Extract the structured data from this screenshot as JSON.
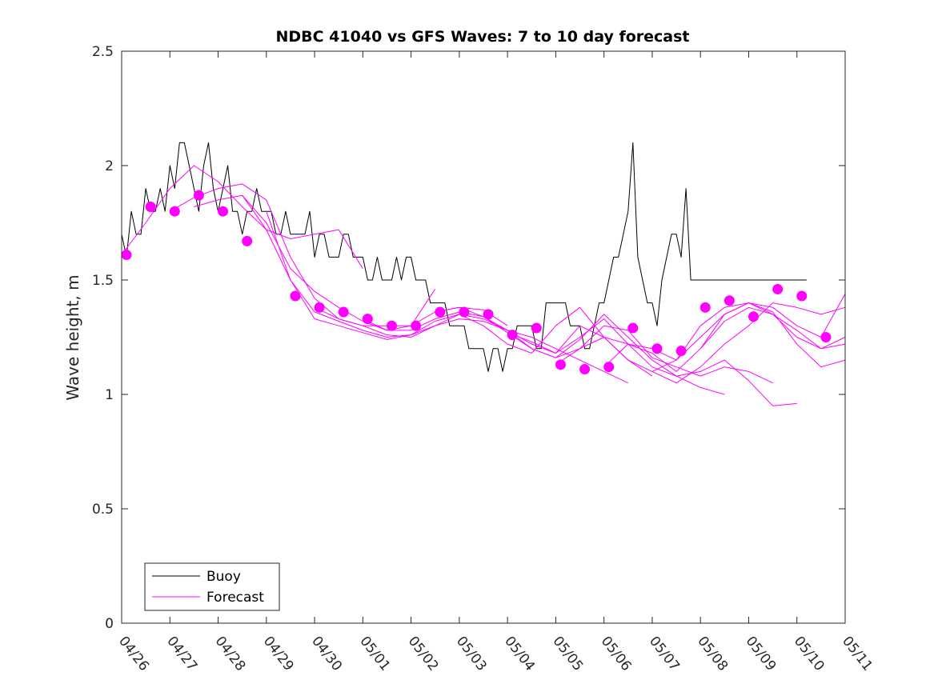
{
  "chart_data": {
    "type": "line",
    "title": "NDBC 41040 vs GFS Waves: 7 to 10 day forecast",
    "xlabel": "",
    "ylabel": "Wave height, m",
    "xlim": [
      0,
      15
    ],
    "ylim": [
      0,
      2.5
    ],
    "x_tick_labels": [
      "04/26",
      "04/27",
      "04/28",
      "04/29",
      "04/30",
      "05/01",
      "05/02",
      "05/03",
      "05/04",
      "05/05",
      "05/06",
      "05/07",
      "05/08",
      "05/09",
      "05/10",
      "05/11"
    ],
    "y_ticks": [
      0,
      0.5,
      1,
      1.5,
      2,
      2.5
    ],
    "y_tick_labels": [
      "0",
      "0.5",
      "1",
      "1.5",
      "2",
      "2.5"
    ],
    "grid": false,
    "legend": {
      "placement": "bottom-left",
      "entries": [
        {
          "label": "Buoy",
          "color": "#000000"
        },
        {
          "label": "Forecast",
          "color": "#ff00ff"
        }
      ]
    },
    "colors": {
      "buoy": "#000000",
      "forecast": "#ff00ff"
    },
    "series": [
      {
        "name": "Buoy",
        "role": "buoy",
        "x": [
          0,
          0.1,
          0.2,
          0.3,
          0.4,
          0.5,
          0.6,
          0.7,
          0.8,
          0.9,
          1.0,
          1.1,
          1.2,
          1.3,
          1.4,
          1.5,
          1.6,
          1.7,
          1.8,
          1.9,
          2.0,
          2.1,
          2.2,
          2.3,
          2.4,
          2.5,
          2.6,
          2.7,
          2.8,
          2.9,
          3.0,
          3.1,
          3.2,
          3.3,
          3.4,
          3.5,
          3.6,
          3.7,
          3.8,
          3.9,
          4.0,
          4.1,
          4.2,
          4.3,
          4.4,
          4.5,
          4.6,
          4.7,
          4.8,
          4.9,
          5.0,
          5.1,
          5.2,
          5.3,
          5.4,
          5.5,
          5.6,
          5.7,
          5.8,
          5.9,
          6.0,
          6.1,
          6.2,
          6.3,
          6.4,
          6.5,
          6.6,
          6.7,
          6.8,
          6.9,
          7.0,
          7.1,
          7.2,
          7.3,
          7.4,
          7.5,
          7.6,
          7.7,
          7.8,
          7.9,
          8.0,
          8.1,
          8.2,
          8.3,
          8.4,
          8.5,
          8.6,
          8.7,
          8.8,
          8.9,
          9.0,
          9.1,
          9.2,
          9.3,
          9.4,
          9.5,
          9.6,
          9.7,
          9.8,
          9.9,
          10.0,
          10.1,
          10.2,
          10.3,
          10.4,
          10.5,
          10.6,
          10.7,
          10.8,
          10.9,
          11.0,
          11.1,
          11.2,
          11.3,
          11.4,
          11.5,
          11.6,
          11.7,
          11.8,
          11.9,
          12.0,
          12.1,
          12.2,
          12.3,
          12.4,
          12.5,
          12.6,
          12.7,
          12.8,
          12.9,
          13.0,
          13.1,
          13.2,
          13.3,
          13.4,
          13.5,
          13.6,
          13.7,
          13.8,
          13.9,
          14.0,
          14.1,
          14.2
        ],
        "values": [
          1.7,
          1.6,
          1.8,
          1.7,
          1.7,
          1.9,
          1.8,
          1.8,
          1.9,
          1.8,
          2.0,
          1.9,
          2.1,
          2.1,
          2.0,
          1.9,
          1.8,
          2.0,
          2.1,
          1.9,
          1.8,
          1.9,
          2.0,
          1.8,
          1.8,
          1.7,
          1.8,
          1.8,
          1.9,
          1.8,
          1.8,
          1.8,
          1.7,
          1.7,
          1.8,
          1.7,
          1.7,
          1.7,
          1.7,
          1.8,
          1.6,
          1.7,
          1.7,
          1.6,
          1.6,
          1.6,
          1.7,
          1.7,
          1.6,
          1.6,
          1.6,
          1.5,
          1.5,
          1.6,
          1.5,
          1.5,
          1.5,
          1.6,
          1.5,
          1.6,
          1.6,
          1.5,
          1.5,
          1.5,
          1.4,
          1.4,
          1.4,
          1.4,
          1.3,
          1.3,
          1.3,
          1.3,
          1.2,
          1.2,
          1.2,
          1.2,
          1.1,
          1.2,
          1.2,
          1.1,
          1.2,
          1.2,
          1.3,
          1.3,
          1.3,
          1.3,
          1.2,
          1.2,
          1.4,
          1.4,
          1.4,
          1.4,
          1.4,
          1.3,
          1.3,
          1.3,
          1.2,
          1.2,
          1.3,
          1.4,
          1.4,
          1.5,
          1.6,
          1.6,
          1.7,
          1.8,
          2.1,
          1.6,
          1.5,
          1.4,
          1.4,
          1.3,
          1.5,
          1.6,
          1.7,
          1.7,
          1.6,
          1.9,
          1.5,
          1.5,
          1.5,
          1.5,
          1.5,
          1.5,
          1.5,
          1.5,
          1.5,
          1.5,
          1.5,
          1.5,
          1.5,
          1.5,
          1.5,
          1.5,
          1.5,
          1.5,
          1.5,
          1.5,
          1.5,
          1.5,
          1.5,
          1.5,
          1.5
        ]
      },
      {
        "name": "Forecast",
        "role": "forecast",
        "x": [
          0,
          0.5,
          1.0,
          1.5,
          2.0,
          2.5,
          3.0,
          3.5,
          4.0,
          4.5,
          5.0
        ],
        "values": [
          1.61,
          1.75,
          1.9,
          2.0,
          1.93,
          1.82,
          1.72,
          1.68,
          1.7,
          1.72,
          1.55
        ]
      },
      {
        "role": "forecast",
        "x": [
          1.0,
          1.5,
          2.0,
          2.5,
          3.0,
          3.5,
          4.0,
          4.5,
          5.0,
          5.5,
          6.0,
          6.5
        ],
        "values": [
          1.8,
          1.86,
          1.9,
          1.92,
          1.85,
          1.6,
          1.42,
          1.33,
          1.3,
          1.3,
          1.3,
          1.46
        ]
      },
      {
        "role": "forecast",
        "x": [
          1.5,
          2.0,
          2.5,
          3.0,
          3.5,
          4.0,
          4.5,
          5.0,
          5.5,
          6.0,
          6.5,
          7.0,
          7.5,
          8.0
        ],
        "values": [
          1.82,
          1.85,
          1.87,
          1.75,
          1.55,
          1.45,
          1.38,
          1.32,
          1.28,
          1.3,
          1.36,
          1.38,
          1.37,
          1.3
        ]
      },
      {
        "role": "forecast",
        "x": [
          2.5,
          3.0,
          3.5,
          4.0,
          4.5,
          5.0,
          5.5,
          6.0,
          6.5,
          7.0,
          7.5,
          8.0,
          8.5,
          9.0,
          9.5,
          10.0,
          10.5
        ],
        "values": [
          1.87,
          1.72,
          1.5,
          1.36,
          1.32,
          1.28,
          1.25,
          1.26,
          1.3,
          1.33,
          1.32,
          1.28,
          1.25,
          1.2,
          1.15,
          1.1,
          1.05
        ]
      },
      {
        "role": "forecast",
        "x": [
          3.0,
          3.5,
          4.0,
          4.5,
          5.0,
          5.5,
          6.0,
          6.5,
          7.0,
          7.5,
          8.0,
          8.5,
          9.0,
          9.5,
          10.0,
          10.5,
          11.0
        ],
        "values": [
          1.8,
          1.5,
          1.33,
          1.3,
          1.27,
          1.24,
          1.26,
          1.32,
          1.35,
          1.3,
          1.22,
          1.18,
          1.3,
          1.38,
          1.25,
          1.15,
          1.08
        ]
      },
      {
        "role": "forecast",
        "x": [
          4.0,
          4.5,
          5.0,
          5.5,
          6.0,
          6.5,
          7.0,
          7.5,
          8.0,
          8.5,
          9.0,
          9.5,
          10.0,
          10.5,
          11.0,
          11.5,
          12.0,
          12.5
        ],
        "values": [
          1.38,
          1.33,
          1.3,
          1.26,
          1.25,
          1.3,
          1.35,
          1.33,
          1.28,
          1.2,
          1.16,
          1.24,
          1.35,
          1.25,
          1.15,
          1.08,
          1.03,
          1.0
        ]
      },
      {
        "role": "forecast",
        "x": [
          5.0,
          5.5,
          6.0,
          6.5,
          7.0,
          7.5,
          8.0,
          8.5,
          9.0,
          9.5,
          10.0,
          10.5,
          11.0,
          11.5,
          12.0,
          12.5,
          13.0,
          13.5
        ],
        "values": [
          1.33,
          1.28,
          1.28,
          1.33,
          1.36,
          1.34,
          1.27,
          1.2,
          1.16,
          1.2,
          1.3,
          1.28,
          1.16,
          1.12,
          1.08,
          1.12,
          1.1,
          1.05
        ]
      },
      {
        "role": "forecast",
        "x": [
          6.5,
          7.0,
          7.5,
          8.0,
          8.5,
          9.0,
          9.5,
          10.0,
          10.5,
          11.0,
          11.5,
          12.0,
          12.5,
          13.0,
          13.5,
          14.0
        ],
        "values": [
          1.36,
          1.38,
          1.34,
          1.28,
          1.22,
          1.18,
          1.25,
          1.33,
          1.22,
          1.12,
          1.08,
          1.1,
          1.15,
          1.06,
          0.95,
          0.96
        ]
      },
      {
        "role": "forecast",
        "x": [
          8.0,
          8.5,
          9.0,
          9.5,
          10.0,
          10.5,
          11.0,
          11.5,
          12.0,
          12.5,
          13.0,
          13.5,
          14.0,
          14.5,
          15.0
        ],
        "values": [
          1.27,
          1.23,
          1.18,
          1.3,
          1.25,
          1.15,
          1.1,
          1.05,
          1.12,
          1.22,
          1.3,
          1.4,
          1.38,
          1.35,
          1.38
        ]
      },
      {
        "role": "forecast",
        "x": [
          9.0,
          9.5,
          10.0,
          10.5,
          11.0,
          11.5,
          12.0,
          12.5,
          13.0,
          13.5,
          14.0,
          14.5,
          15.0
        ],
        "values": [
          1.13,
          1.2,
          1.25,
          1.22,
          1.18,
          1.1,
          1.2,
          1.32,
          1.38,
          1.35,
          1.25,
          1.2,
          1.25
        ]
      },
      {
        "role": "forecast",
        "x": [
          10.0,
          10.5,
          11.0,
          11.5,
          12.0,
          12.5,
          13.0,
          13.5,
          14.0,
          14.5,
          15.0
        ],
        "values": [
          1.12,
          1.22,
          1.2,
          1.15,
          1.25,
          1.35,
          1.4,
          1.36,
          1.22,
          1.12,
          1.15
        ]
      },
      {
        "role": "forecast",
        "x": [
          11.0,
          11.5,
          12.0,
          12.5,
          13.0,
          13.5,
          14.0,
          14.5,
          15.0
        ],
        "values": [
          1.1,
          1.15,
          1.3,
          1.38,
          1.4,
          1.35,
          1.28,
          1.2,
          1.22
        ]
      },
      {
        "role": "forecast",
        "x": [
          12.0,
          12.5,
          13.0,
          13.5,
          14.0,
          14.5,
          15.0
        ],
        "values": [
          1.2,
          1.35,
          1.4,
          1.38,
          1.3,
          1.25,
          1.44
        ]
      },
      {
        "role": "forecast-markers",
        "x": [
          0.1,
          0.6,
          1.1,
          1.6,
          2.1,
          2.6,
          3.6,
          4.1,
          4.6,
          5.1,
          5.6,
          6.1,
          6.6,
          7.1,
          7.6,
          8.1,
          8.6,
          9.1,
          9.6,
          10.1,
          10.6,
          11.1,
          11.6,
          12.1,
          12.6,
          13.1,
          13.6,
          14.1,
          14.6
        ],
        "values": [
          1.61,
          1.82,
          1.8,
          1.87,
          1.8,
          1.67,
          1.43,
          1.38,
          1.36,
          1.33,
          1.3,
          1.3,
          1.36,
          1.36,
          1.35,
          1.26,
          1.29,
          1.13,
          1.11,
          1.12,
          1.29,
          1.2,
          1.19,
          1.38,
          1.41,
          1.34,
          1.46,
          1.43,
          1.25
        ]
      }
    ]
  }
}
